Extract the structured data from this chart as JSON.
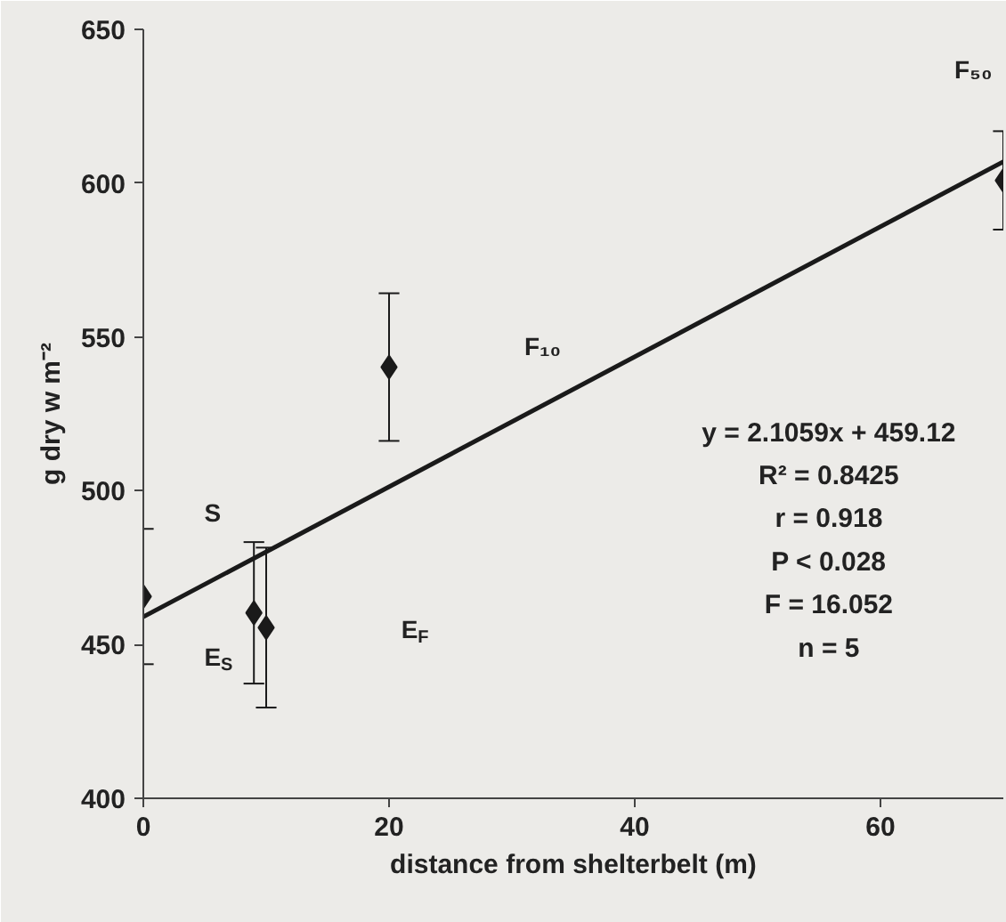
{
  "chart_data": {
    "type": "scatter",
    "xlabel": "distance from shelterbelt (m)",
    "ylabel": "g dry w m⁻²",
    "x": [
      0,
      9,
      10,
      20,
      70
    ],
    "xlim": [
      0,
      70
    ],
    "xticks": [
      0,
      20,
      40,
      60
    ],
    "ylim": [
      400,
      650
    ],
    "yticks": [
      400,
      450,
      500,
      550,
      600,
      650
    ],
    "marker": "diamond",
    "series": [
      {
        "color": "#1a1a1a",
        "values": [
          465.6,
          460.3,
          455.5,
          540.2,
          600.9
        ],
        "errors": [
          22,
          23,
          26,
          24,
          16
        ]
      },
      {
        "type": "line",
        "color": "#1a1a1a",
        "x": [
          0,
          70
        ],
        "values": [
          459,
          607
        ],
        "marker": "none"
      }
    ],
    "annotations": [
      "S",
      "E$_{S}$",
      "E$_{F}$",
      "F₁₀",
      "F₅₀",
      "y = 2.1059x + 459.12",
      "R² = 0.8425",
      "r = 0.918",
      "P < 0.028",
      "F = 16.052",
      "n = 5"
    ]
  }
}
